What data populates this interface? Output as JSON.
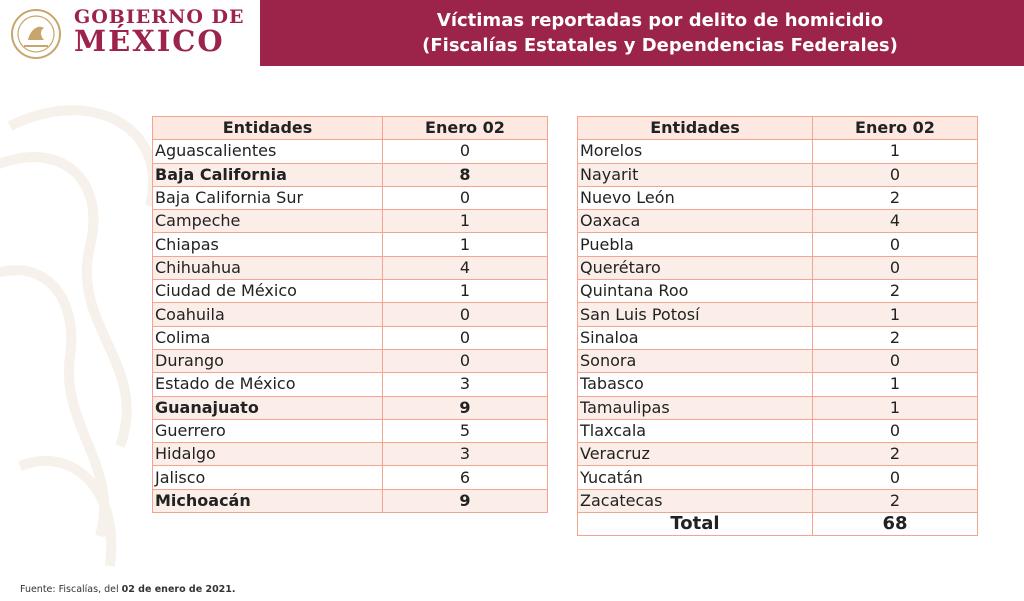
{
  "header": {
    "logo_line1": "GOBIERNO DE",
    "logo_line2": "MÉXICO",
    "title_line1": "Víctimas reportadas por delito de homicidio",
    "title_line2": "(Fiscalías Estatales y Dependencias Federales)",
    "brand_color": "#9c2349"
  },
  "table_left": {
    "col1": "Entidades",
    "col2": "Enero 02",
    "rows": [
      {
        "name": "Aguascalientes",
        "value": "0",
        "bold": false
      },
      {
        "name": "Baja California",
        "value": "8",
        "bold": true
      },
      {
        "name": "Baja California Sur",
        "value": "0",
        "bold": false
      },
      {
        "name": "Campeche",
        "value": "1",
        "bold": false
      },
      {
        "name": "Chiapas",
        "value": "1",
        "bold": false
      },
      {
        "name": "Chihuahua",
        "value": "4",
        "bold": false
      },
      {
        "name": "Ciudad de México",
        "value": "1",
        "bold": false
      },
      {
        "name": "Coahuila",
        "value": "0",
        "bold": false
      },
      {
        "name": "Colima",
        "value": "0",
        "bold": false
      },
      {
        "name": "Durango",
        "value": "0",
        "bold": false
      },
      {
        "name": "Estado de México",
        "value": "3",
        "bold": false
      },
      {
        "name": "Guanajuato",
        "value": "9",
        "bold": true
      },
      {
        "name": "Guerrero",
        "value": "5",
        "bold": false
      },
      {
        "name": "Hidalgo",
        "value": "3",
        "bold": false
      },
      {
        "name": "Jalisco",
        "value": "6",
        "bold": false
      },
      {
        "name": "Michoacán",
        "value": "9",
        "bold": true
      }
    ]
  },
  "table_right": {
    "col1": "Entidades",
    "col2": "Enero 02",
    "rows": [
      {
        "name": "Morelos",
        "value": "1",
        "bold": false
      },
      {
        "name": "Nayarit",
        "value": "0",
        "bold": false
      },
      {
        "name": "Nuevo León",
        "value": "2",
        "bold": false
      },
      {
        "name": "Oaxaca",
        "value": "4",
        "bold": false
      },
      {
        "name": "Puebla",
        "value": "0",
        "bold": false
      },
      {
        "name": "Querétaro",
        "value": "0",
        "bold": false
      },
      {
        "name": "Quintana Roo",
        "value": "2",
        "bold": false
      },
      {
        "name": "San Luis Potosí",
        "value": "1",
        "bold": false
      },
      {
        "name": "Sinaloa",
        "value": "2",
        "bold": false
      },
      {
        "name": "Sonora",
        "value": "0",
        "bold": false
      },
      {
        "name": "Tabasco",
        "value": "1",
        "bold": false
      },
      {
        "name": "Tamaulipas",
        "value": "1",
        "bold": false
      },
      {
        "name": "Tlaxcala",
        "value": "0",
        "bold": false
      },
      {
        "name": "Veracruz",
        "value": "2",
        "bold": false
      },
      {
        "name": "Yucatán",
        "value": "0",
        "bold": false
      },
      {
        "name": "Zacatecas",
        "value": "2",
        "bold": false
      }
    ],
    "total_label": "Total",
    "total_value": "68"
  },
  "footer": {
    "prefix": "Fuente: Fiscalías, del ",
    "date": "02 de enero de 2021."
  }
}
